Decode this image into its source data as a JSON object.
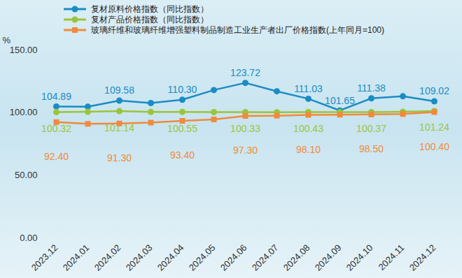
{
  "chart_data": {
    "type": "line",
    "categories": [
      "2023.12",
      "2024.01",
      "2024.02",
      "2024.03",
      "2024.04",
      "2024.05",
      "2024.06",
      "2024.07",
      "2024.08",
      "2024.09",
      "2024.10",
      "2024.11",
      "2024.12"
    ],
    "series": [
      {
        "name": "复材原料价格指数（同比指数）",
        "color": "#1a8cc4",
        "marker": "circle",
        "line_style": "solid",
        "values": [
          104.89,
          104.7,
          109.58,
          107.6,
          110.3,
          118.0,
          123.72,
          117.0,
          111.03,
          101.65,
          111.38,
          113.0,
          109.02
        ],
        "value_labels": [
          "104.89",
          null,
          "109.58",
          null,
          "110.30",
          null,
          "123.72",
          null,
          "111.03",
          "101.65",
          "111.38",
          null,
          "109.02"
        ]
      },
      {
        "name": "复材产品价格指数（同比指数）",
        "color": "#9cc43a",
        "marker": "circle",
        "line_style": "solid",
        "values": [
          100.32,
          100.6,
          101.14,
          100.5,
          100.55,
          100.4,
          100.33,
          100.3,
          100.43,
          100.4,
          100.37,
          100.6,
          101.24
        ],
        "value_labels": [
          "100.32",
          null,
          "101.14",
          null,
          "100.55",
          null,
          "100.33",
          null,
          "100.43",
          null,
          "100.37",
          null,
          "101.24"
        ]
      },
      {
        "name": "玻璃纤维和玻璃纤维增强塑料制品制造工业生产者出厂价格指数(上年同月=100)",
        "color": "#f08a3c",
        "marker": "square",
        "line_style": "solid",
        "values": [
          92.4,
          91.0,
          91.3,
          92.0,
          93.4,
          94.5,
          97.3,
          97.5,
          98.1,
          98.3,
          98.5,
          98.8,
          100.4
        ],
        "value_labels": [
          "92.40",
          null,
          "91.30",
          null,
          "93.40",
          null,
          "97.30",
          null,
          "98.10",
          null,
          "98.50",
          null,
          "100.40"
        ]
      }
    ],
    "y_label": "%",
    "ylim": [
      0,
      150
    ],
    "yticks": [
      {
        "value": 0,
        "label": "0.00"
      },
      {
        "value": 50,
        "label": "50.00"
      },
      {
        "value": 100,
        "label": "100.00"
      },
      {
        "value": 150,
        "label": "150.00"
      }
    ],
    "grid": false,
    "legend": "top",
    "data_labels": true
  }
}
